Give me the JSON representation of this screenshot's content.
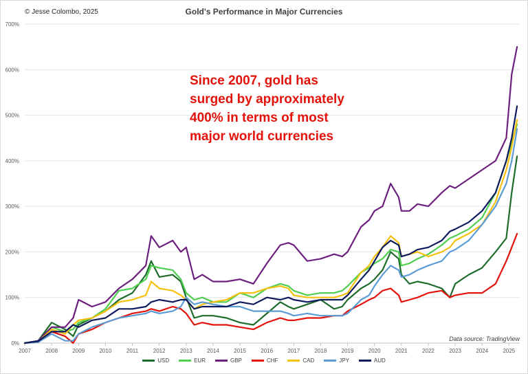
{
  "copyright": "© Jesse Colombo, 2025",
  "source": "Data source: TradingView",
  "chart_data": {
    "type": "line",
    "title": "Gold's Performance in Major Currencies",
    "annotation": [
      "Since 2007, gold has",
      "surged by approximately",
      "400% in terms of most",
      "major world currencies"
    ],
    "xlabel": "",
    "ylabel": "",
    "xlim": [
      2007,
      2025.4
    ],
    "ylim": [
      0,
      700
    ],
    "x_ticks": [
      "2007",
      "2008",
      "2009",
      "2010",
      "2011",
      "2012",
      "2013",
      "2014",
      "2015",
      "2016",
      "2017",
      "2018",
      "2019",
      "2020",
      "2021",
      "2022",
      "2023",
      "2024",
      "2025"
    ],
    "y_ticks": [
      "0%",
      "100%",
      "200%",
      "300%",
      "400%",
      "500%",
      "600%",
      "700%"
    ],
    "grid": "horizontal",
    "legend_position": "bottom",
    "x": [
      2007.0,
      2007.5,
      2008.0,
      2008.5,
      2008.8,
      2009.0,
      2009.5,
      2010.0,
      2010.5,
      2011.0,
      2011.5,
      2011.7,
      2012.0,
      2012.5,
      2012.8,
      2013.0,
      2013.3,
      2013.6,
      2014.0,
      2014.5,
      2015.0,
      2015.5,
      2016.0,
      2016.5,
      2016.8,
      2017.0,
      2017.5,
      2018.0,
      2018.5,
      2018.8,
      2019.0,
      2019.5,
      2019.8,
      2020.0,
      2020.3,
      2020.6,
      2020.9,
      2021.0,
      2021.3,
      2021.6,
      2022.0,
      2022.5,
      2022.8,
      2023.0,
      2023.5,
      2024.0,
      2024.5,
      2024.9,
      2025.1,
      2025.3
    ],
    "series": [
      {
        "name": "USD",
        "color": "#1e6b2a",
        "values": [
          0,
          5,
          45,
          30,
          15,
          40,
          55,
          70,
          95,
          110,
          150,
          180,
          145,
          150,
          135,
          100,
          55,
          60,
          60,
          55,
          45,
          40,
          65,
          90,
          80,
          75,
          85,
          95,
          75,
          80,
          95,
          120,
          130,
          140,
          160,
          200,
          185,
          150,
          130,
          135,
          130,
          120,
          100,
          130,
          150,
          165,
          200,
          230,
          330,
          410
        ]
      },
      {
        "name": "EUR",
        "color": "#4fce4f",
        "values": [
          0,
          5,
          35,
          25,
          30,
          45,
          55,
          75,
          115,
          120,
          140,
          170,
          165,
          160,
          140,
          110,
          95,
          100,
          90,
          90,
          110,
          100,
          120,
          130,
          125,
          115,
          105,
          110,
          110,
          115,
          125,
          155,
          165,
          175,
          185,
          205,
          200,
          170,
          175,
          185,
          195,
          215,
          230,
          235,
          250,
          275,
          330,
          400,
          440,
          480
        ]
      },
      {
        "name": "GBP",
        "color": "#6c1f7d",
        "values": [
          0,
          5,
          35,
          35,
          55,
          95,
          80,
          90,
          120,
          140,
          170,
          235,
          210,
          225,
          200,
          210,
          140,
          150,
          135,
          135,
          140,
          130,
          175,
          215,
          220,
          215,
          180,
          185,
          195,
          190,
          200,
          255,
          270,
          290,
          300,
          350,
          320,
          290,
          290,
          305,
          300,
          330,
          345,
          340,
          360,
          380,
          400,
          450,
          590,
          650
        ]
      },
      {
        "name": "CHF",
        "color": "#e3120b",
        "values": [
          0,
          2,
          25,
          15,
          0,
          20,
          30,
          45,
          55,
          65,
          70,
          75,
          70,
          80,
          75,
          65,
          40,
          45,
          40,
          40,
          35,
          30,
          45,
          55,
          50,
          50,
          55,
          55,
          60,
          60,
          70,
          85,
          95,
          100,
          115,
          120,
          105,
          90,
          95,
          100,
          110,
          115,
          100,
          105,
          110,
          110,
          130,
          180,
          210,
          240
        ]
      },
      {
        "name": "CAD",
        "color": "#f6c00e",
        "values": [
          0,
          3,
          30,
          20,
          40,
          50,
          55,
          70,
          90,
          95,
          105,
          135,
          120,
          115,
          105,
          95,
          75,
          85,
          90,
          95,
          110,
          110,
          120,
          125,
          120,
          105,
          100,
          100,
          100,
          105,
          110,
          155,
          170,
          190,
          210,
          235,
          220,
          190,
          195,
          200,
          190,
          200,
          210,
          225,
          240,
          260,
          310,
          380,
          430,
          490
        ]
      },
      {
        "name": "JPY",
        "color": "#5b9bd5",
        "values": [
          0,
          2,
          20,
          5,
          5,
          20,
          35,
          45,
          55,
          60,
          65,
          70,
          65,
          70,
          80,
          100,
          85,
          90,
          85,
          80,
          80,
          70,
          70,
          70,
          65,
          60,
          65,
          60,
          60,
          60,
          65,
          95,
          105,
          125,
          150,
          170,
          160,
          145,
          150,
          160,
          170,
          180,
          200,
          205,
          225,
          260,
          300,
          350,
          400,
          470
        ]
      },
      {
        "name": "AUD",
        "color": "#0d1b5c",
        "values": [
          0,
          4,
          25,
          25,
          40,
          35,
          50,
          55,
          75,
          75,
          80,
          90,
          95,
          90,
          95,
          95,
          75,
          80,
          80,
          80,
          90,
          85,
          100,
          95,
          100,
          95,
          90,
          95,
          95,
          95,
          105,
          140,
          160,
          180,
          210,
          225,
          215,
          190,
          195,
          205,
          210,
          225,
          245,
          250,
          265,
          290,
          330,
          400,
          450,
          520
        ]
      }
    ]
  }
}
